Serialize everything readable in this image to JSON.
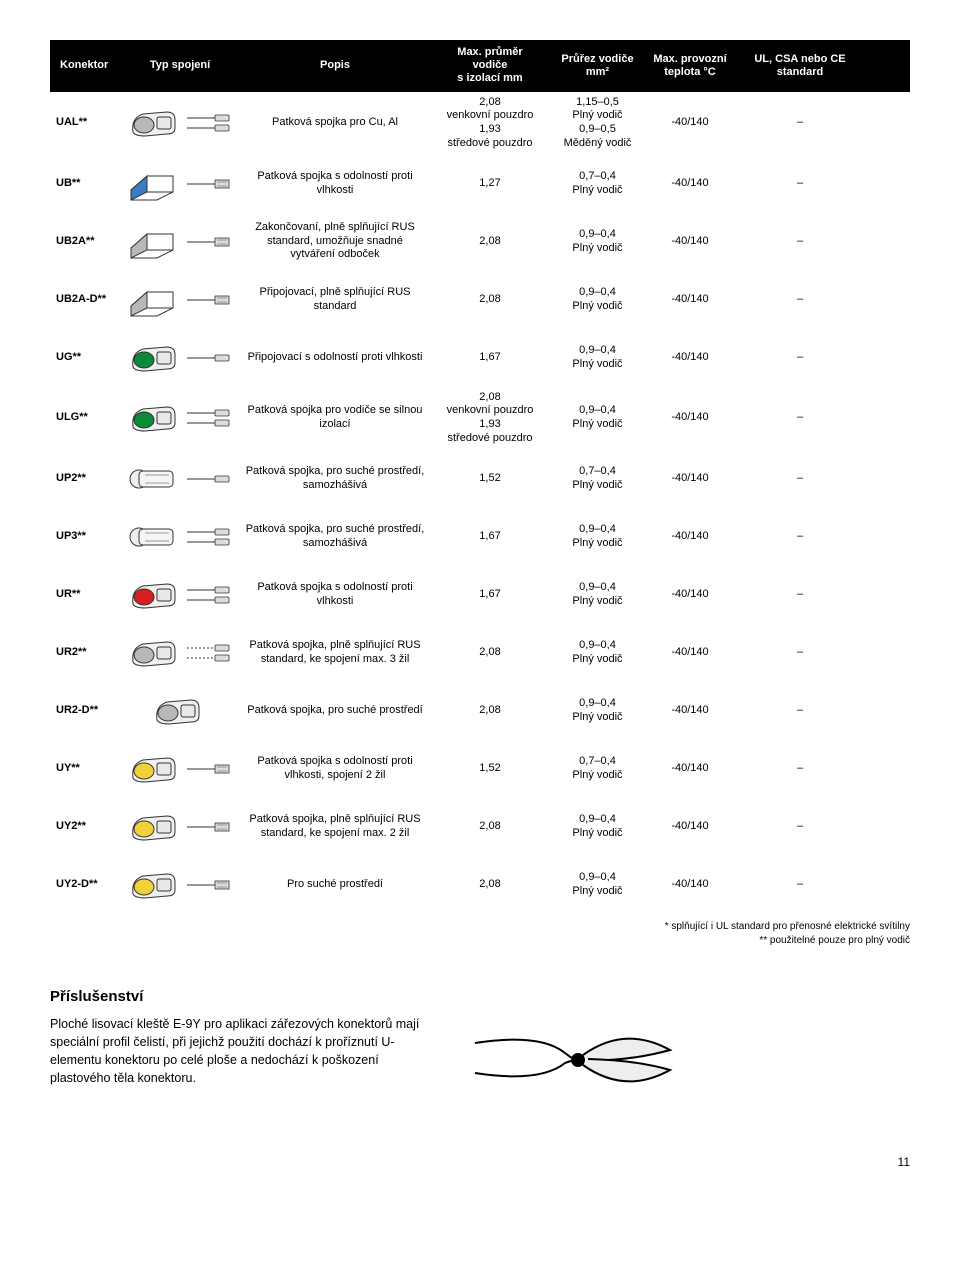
{
  "headers": {
    "konektor": "Konektor",
    "typ": "Typ spojení",
    "popis": "Popis",
    "prumer": "Max. průměr\nvodiče\ns izolací mm",
    "prurez": "Průřez vodiče\nmm²",
    "teplota": "Max. provozní\nteplota °C",
    "standard": "UL, CSA nebo CE standard"
  },
  "rows": [
    {
      "id": "UAL**",
      "shape": "gray-lug",
      "wires": "double",
      "popis": "Patková spojka pro Cu, Al",
      "prumer": "2,08\nvenkovní pouzdro\n1,93\nstředové pouzdro",
      "prurez": "1,15–0,5\nPlný vodič\n0,9–0,5\nMěděný vodič",
      "teplota": "-40/140",
      "standard": "–"
    },
    {
      "id": "UB**",
      "shape": "blue-white-box",
      "wires": "single-stripe",
      "popis": "Patková spojka s odolností proti vlhkosti",
      "prumer": "1,27",
      "prurez": "0,7–0,4\nPlný vodič",
      "teplota": "-40/140",
      "standard": "–"
    },
    {
      "id": "UB2A**",
      "shape": "white-box",
      "wires": "single-stripe",
      "popis": "Zakončovaní, plně splňující RUS standard, umožňuje snadné vytváření odboček",
      "prumer": "2,08",
      "prurez": "0,9–0,4\nPlný vodič",
      "teplota": "-40/140",
      "standard": "–"
    },
    {
      "id": "UB2A-D**",
      "shape": "white-box",
      "wires": "single-stripe",
      "popis": "Připojovací, plně splňující RUS standard",
      "prumer": "2,08",
      "prurez": "0,9–0,4\nPlný vodič",
      "teplota": "-40/140",
      "standard": "–"
    },
    {
      "id": "UG**",
      "shape": "green-lug",
      "wires": "single",
      "popis": "Připojovací s odolností proti vlhkosti",
      "prumer": "1,67",
      "prurez": "0,9–0,4\nPlný vodič",
      "teplota": "-40/140",
      "standard": "–"
    },
    {
      "id": "ULG**",
      "shape": "green-dark-lug",
      "wires": "double",
      "popis": "Patková spojka pro vodiče se silnou izolací",
      "prumer": "2,08\nvenkovní pouzdro\n1,93\nstředové pouzdro",
      "prurez": "0,9–0,4\nPlný vodič",
      "teplota": "-40/140",
      "standard": "–"
    },
    {
      "id": "UP2**",
      "shape": "flat-white",
      "wires": "single",
      "popis": "Patková spojka, pro suché prostředí, samozhášivá",
      "prumer": "1,52",
      "prurez": "0,7–0,4\nPlný vodič",
      "teplota": "-40/140",
      "standard": "–"
    },
    {
      "id": "UP3**",
      "shape": "flat-white",
      "wires": "double",
      "popis": "Patková spojka, pro suché prostředí, samozhášivá",
      "prumer": "1,67",
      "prurez": "0,9–0,4\nPlný vodič",
      "teplota": "-40/140",
      "standard": "–"
    },
    {
      "id": "UR**",
      "shape": "red-lug",
      "wires": "double",
      "popis": "Patková spojka s odolností proti vlhkosti",
      "prumer": "1,67",
      "prurez": "0,9–0,4\nPlný vodič",
      "teplota": "-40/140",
      "standard": "–"
    },
    {
      "id": "UR2**",
      "shape": "white-lug",
      "wires": "double-dash",
      "popis": "Patková spojka, plně splňující RUS standard, ke spojení max. 3 žil",
      "prumer": "2,08",
      "prurez": "0,9–0,4\nPlný vodič",
      "teplota": "-40/140",
      "standard": "–"
    },
    {
      "id": "UR2-D**",
      "shape": "white-lug",
      "wires": "none",
      "popis": "Patková spojka, pro suché prostředí",
      "prumer": "2,08",
      "prurez": "0,9–0,4\nPlný vodič",
      "teplota": "-40/140",
      "standard": "–"
    },
    {
      "id": "UY**",
      "shape": "yellow-lug",
      "wires": "single-stripe",
      "popis": "Patková spojka s odolností proti vlhkosti, spojení 2 žil",
      "prumer": "1,52",
      "prurez": "0,7–0,4\nPlný vodič",
      "teplota": "-40/140",
      "standard": "–"
    },
    {
      "id": "UY2**",
      "shape": "yellow-lug",
      "wires": "single-stripe",
      "popis": "Patková spojka, plně splňující RUS standard, ke spojení max. 2 žil",
      "prumer": "2,08",
      "prurez": "0,9–0,4\nPlný vodič",
      "teplota": "-40/140",
      "standard": "–"
    },
    {
      "id": "UY2-D**",
      "shape": "yellow-lug",
      "wires": "single-stripe",
      "popis": "Pro suché prostředí",
      "prumer": "2,08",
      "prurez": "0,9–0,4\nPlný vodič",
      "teplota": "-40/140",
      "standard": "–"
    }
  ],
  "footnotes": {
    "line1": "* splňující i UL standard pro přenosné elektrické svítilny",
    "line2": "** použitelné pouze pro plný vodič"
  },
  "accessories": {
    "title": "Příslušenství",
    "text": "Ploché lisovací kleště E-9Y pro aplikaci zářezových konektorů mají speciální profil čelistí, při jejichž použití dochází k proříznutí U-elementu konektoru po celé ploše a nedochází k poškození plastového těla konektoru."
  },
  "page": "11",
  "colors": {
    "black": "#000000",
    "blue": "#3b7bc4",
    "green": "#0b8a3a",
    "red": "#d81e1e",
    "yellow": "#f2d23a",
    "gray": "#b8b8b8",
    "white": "#ffffff"
  }
}
